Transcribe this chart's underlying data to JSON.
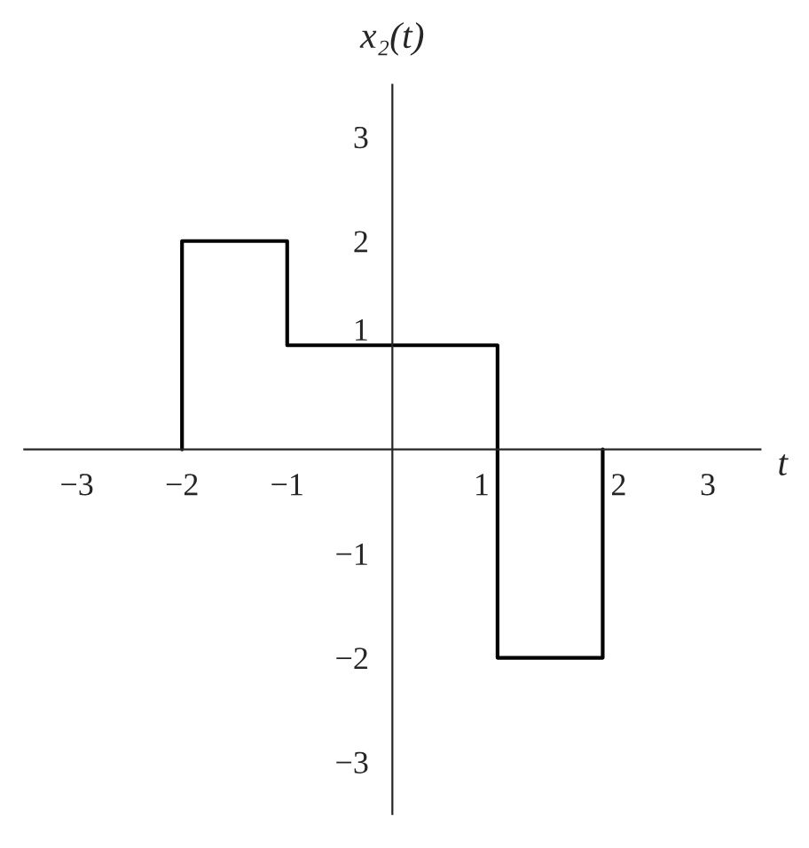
{
  "chart_data": {
    "type": "step",
    "xlabel": "t",
    "ylabel": "x₂(t)",
    "x": [
      -2,
      -2,
      -1,
      1,
      2,
      2
    ],
    "values": [
      0,
      2,
      1,
      -2,
      -2,
      0
    ],
    "color": "#000000",
    "xlim": [
      -3.5,
      3.5
    ],
    "ylim": [
      -3.5,
      3.5
    ],
    "xticks": [
      {
        "value": -3,
        "label": "−3"
      },
      {
        "value": -2,
        "label": "−2"
      },
      {
        "value": -1,
        "label": "−1"
      },
      1,
      2,
      3
    ],
    "yticks": [
      {
        "value": -3,
        "label": "−3"
      },
      {
        "value": -2,
        "label": "−2"
      },
      {
        "value": -1,
        "label": "−1"
      },
      1,
      2,
      3
    ],
    "grid": false
  }
}
